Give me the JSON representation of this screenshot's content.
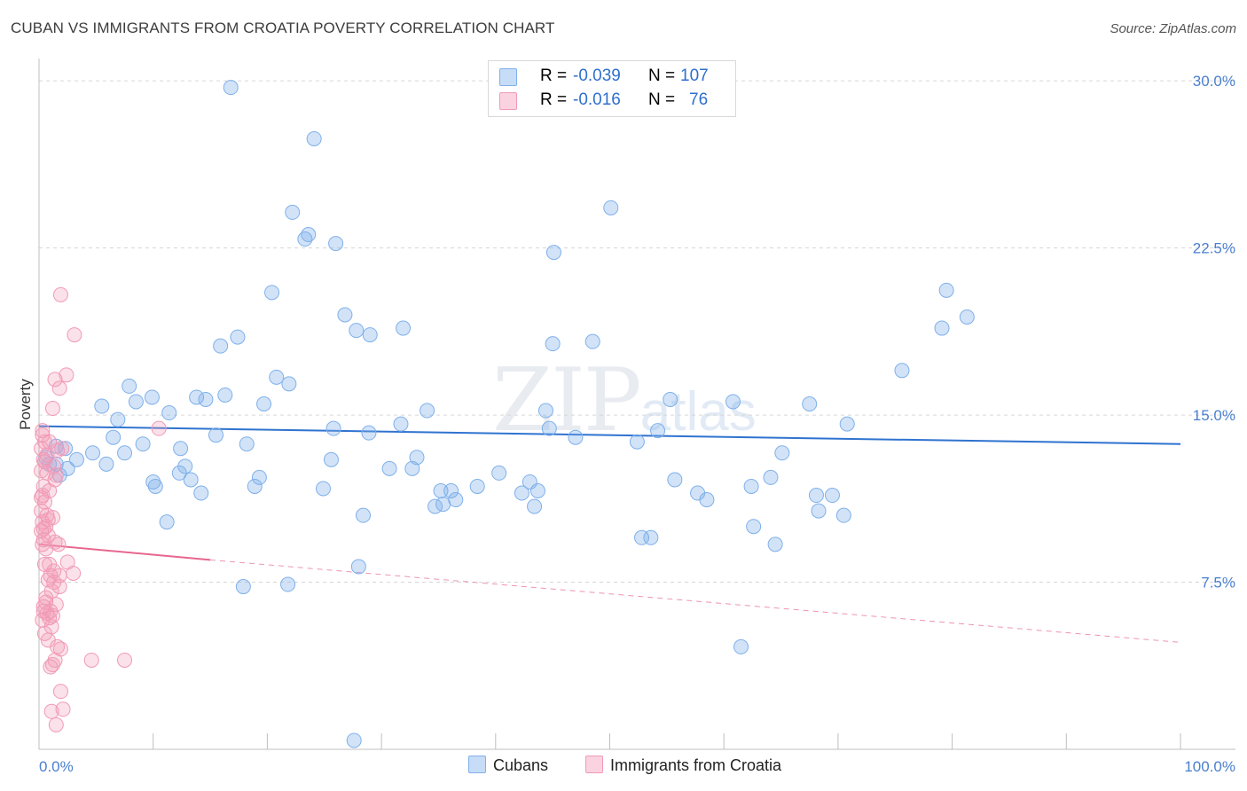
{
  "title": "CUBAN VS IMMIGRANTS FROM CROATIA POVERTY CORRELATION CHART",
  "source": "Source: ZipAtlas.com",
  "watermark": {
    "zip": "ZIP",
    "atlas": "atlas"
  },
  "legend": {
    "rows": [
      {
        "r_label": "R =",
        "r_value": "-0.039",
        "n_label": "N =",
        "n_value": "107",
        "color": "#7fb0ea"
      },
      {
        "r_label": "R =",
        "r_value": "-0.016",
        "n_label": "N =",
        "n_value": "76",
        "color": "#f19ab6"
      }
    ]
  },
  "bottom_legend": [
    {
      "label": "Cubans",
      "color": "#7fb0ea"
    },
    {
      "label": "Immigrants from Croatia",
      "color": "#f19ab6"
    }
  ],
  "chart_data": {
    "type": "scatter",
    "title": "CUBAN VS IMMIGRANTS FROM CROATIA POVERTY CORRELATION CHART",
    "xlabel": "",
    "ylabel": "Poverty",
    "xlim": [
      0,
      100
    ],
    "ylim": [
      0,
      31
    ],
    "x_tick_labels": [
      "0.0%",
      "100.0%"
    ],
    "y_ticks": [
      7.5,
      15.0,
      22.5,
      30.0
    ],
    "y_tick_labels": [
      "7.5%",
      "15.0%",
      "22.5%",
      "30.0%"
    ],
    "grid": "horizontal dashed",
    "series": [
      {
        "name": "Cubans",
        "color": "#7fb0ea",
        "trend": {
          "x": [
            0,
            100
          ],
          "y": [
            14.5,
            13.7
          ],
          "style": "solid",
          "color": "#2f73d0"
        },
        "points": [
          [
            16.8,
            29.7
          ],
          [
            24.1,
            27.4
          ],
          [
            22.2,
            24.1
          ],
          [
            23.6,
            23.1
          ],
          [
            23.3,
            22.9
          ],
          [
            26.0,
            22.7
          ],
          [
            50.1,
            24.3
          ],
          [
            45.1,
            22.3
          ],
          [
            20.4,
            20.5
          ],
          [
            26.8,
            19.5
          ],
          [
            27.8,
            18.8
          ],
          [
            29.0,
            18.6
          ],
          [
            31.9,
            18.9
          ],
          [
            15.9,
            18.1
          ],
          [
            17.4,
            18.5
          ],
          [
            45.0,
            18.2
          ],
          [
            48.5,
            18.3
          ],
          [
            79.5,
            20.6
          ],
          [
            81.3,
            19.4
          ],
          [
            79.1,
            18.9
          ],
          [
            75.6,
            17.0
          ],
          [
            20.8,
            16.7
          ],
          [
            21.9,
            16.4
          ],
          [
            19.7,
            15.5
          ],
          [
            7.9,
            16.3
          ],
          [
            8.5,
            15.6
          ],
          [
            9.9,
            15.8
          ],
          [
            5.5,
            15.4
          ],
          [
            6.9,
            14.8
          ],
          [
            11.4,
            15.1
          ],
          [
            13.8,
            15.8
          ],
          [
            14.6,
            15.7
          ],
          [
            16.3,
            15.9
          ],
          [
            34.0,
            15.2
          ],
          [
            55.3,
            15.7
          ],
          [
            60.8,
            15.6
          ],
          [
            67.5,
            15.5
          ],
          [
            44.4,
            15.2
          ],
          [
            31.7,
            14.6
          ],
          [
            25.8,
            14.4
          ],
          [
            28.9,
            14.2
          ],
          [
            44.7,
            14.4
          ],
          [
            47.0,
            14.0
          ],
          [
            54.2,
            14.3
          ],
          [
            52.4,
            13.8
          ],
          [
            70.8,
            14.6
          ],
          [
            6.5,
            14.0
          ],
          [
            9.1,
            13.7
          ],
          [
            12.4,
            13.5
          ],
          [
            15.5,
            14.1
          ],
          [
            18.2,
            13.7
          ],
          [
            2.3,
            13.5
          ],
          [
            3.3,
            13.0
          ],
          [
            4.7,
            13.3
          ],
          [
            7.5,
            13.3
          ],
          [
            5.9,
            12.8
          ],
          [
            2.5,
            12.6
          ],
          [
            1.5,
            12.8
          ],
          [
            0.9,
            12.8
          ],
          [
            1.8,
            12.3
          ],
          [
            12.8,
            12.7
          ],
          [
            12.3,
            12.4
          ],
          [
            19.3,
            12.2
          ],
          [
            25.6,
            13.0
          ],
          [
            33.1,
            13.1
          ],
          [
            30.7,
            12.6
          ],
          [
            32.7,
            12.6
          ],
          [
            40.3,
            12.4
          ],
          [
            65.1,
            13.3
          ],
          [
            64.1,
            12.2
          ],
          [
            55.7,
            12.1
          ],
          [
            62.4,
            11.8
          ],
          [
            10.0,
            12.0
          ],
          [
            10.2,
            11.8
          ],
          [
            13.3,
            12.1
          ],
          [
            14.2,
            11.5
          ],
          [
            18.9,
            11.8
          ],
          [
            24.9,
            11.7
          ],
          [
            35.2,
            11.6
          ],
          [
            36.1,
            11.6
          ],
          [
            38.4,
            11.8
          ],
          [
            42.3,
            11.5
          ],
          [
            43.0,
            12.0
          ],
          [
            43.7,
            11.6
          ],
          [
            35.4,
            11.0
          ],
          [
            36.5,
            11.2
          ],
          [
            34.7,
            10.9
          ],
          [
            43.4,
            10.9
          ],
          [
            57.7,
            11.5
          ],
          [
            58.5,
            11.2
          ],
          [
            68.1,
            11.4
          ],
          [
            69.5,
            11.4
          ],
          [
            68.3,
            10.7
          ],
          [
            70.5,
            10.5
          ],
          [
            11.2,
            10.2
          ],
          [
            28.4,
            10.5
          ],
          [
            52.8,
            9.5
          ],
          [
            53.6,
            9.5
          ],
          [
            62.6,
            10.0
          ],
          [
            64.5,
            9.2
          ],
          [
            17.9,
            7.3
          ],
          [
            21.8,
            7.4
          ],
          [
            28.0,
            8.2
          ],
          [
            61.5,
            4.6
          ],
          [
            27.6,
            0.4
          ],
          [
            0.6,
            13.1
          ],
          [
            1.5,
            13.6
          ]
        ]
      },
      {
        "name": "Immigrants from Croatia",
        "color": "#f19ab6",
        "trend": {
          "x": [
            0,
            15
          ],
          "y": [
            9.2,
            8.5
          ],
          "dashed_to": [
            100,
            4.8
          ],
          "style": "solid",
          "color": "#e8668f"
        },
        "points": [
          [
            1.9,
            20.4
          ],
          [
            3.1,
            18.6
          ],
          [
            2.4,
            16.8
          ],
          [
            1.4,
            16.6
          ],
          [
            1.8,
            16.2
          ],
          [
            1.2,
            15.3
          ],
          [
            10.5,
            14.4
          ],
          [
            0.3,
            14.3
          ],
          [
            0.5,
            13.8
          ],
          [
            0.9,
            13.8
          ],
          [
            0.2,
            13.5
          ],
          [
            1.6,
            13.4
          ],
          [
            0.4,
            13.0
          ],
          [
            1.3,
            12.7
          ],
          [
            0.2,
            12.5
          ],
          [
            0.7,
            12.4
          ],
          [
            1.5,
            12.3
          ],
          [
            0.4,
            11.8
          ],
          [
            0.9,
            11.6
          ],
          [
            0.3,
            11.4
          ],
          [
            0.5,
            11.1
          ],
          [
            0.2,
            10.7
          ],
          [
            0.7,
            10.5
          ],
          [
            1.2,
            10.4
          ],
          [
            0.3,
            10.2
          ],
          [
            0.6,
            10.0
          ],
          [
            0.2,
            9.8
          ],
          [
            0.8,
            9.6
          ],
          [
            0.4,
            9.4
          ],
          [
            1.4,
            9.3
          ],
          [
            0.3,
            9.2
          ],
          [
            0.6,
            9.0
          ],
          [
            0.9,
            8.3
          ],
          [
            0.5,
            8.3
          ],
          [
            2.5,
            8.4
          ],
          [
            3.0,
            7.9
          ],
          [
            1.8,
            7.8
          ],
          [
            0.8,
            7.6
          ],
          [
            1.3,
            7.5
          ],
          [
            1.8,
            7.3
          ],
          [
            1.1,
            7.1
          ],
          [
            0.6,
            6.8
          ],
          [
            1.5,
            6.5
          ],
          [
            0.4,
            6.4
          ],
          [
            1.0,
            6.2
          ],
          [
            0.7,
            6.1
          ],
          [
            1.2,
            6.0
          ],
          [
            0.3,
            5.8
          ],
          [
            1.1,
            5.5
          ],
          [
            0.5,
            5.2
          ],
          [
            0.8,
            4.9
          ],
          [
            1.6,
            4.6
          ],
          [
            1.9,
            4.5
          ],
          [
            1.4,
            4.0
          ],
          [
            1.2,
            3.8
          ],
          [
            1.0,
            3.7
          ],
          [
            4.6,
            4.0
          ],
          [
            7.5,
            4.0
          ],
          [
            1.9,
            2.6
          ],
          [
            1.1,
            1.7
          ],
          [
            2.1,
            1.8
          ],
          [
            1.5,
            1.1
          ],
          [
            0.4,
            9.9
          ],
          [
            0.8,
            10.3
          ],
          [
            0.6,
            6.6
          ],
          [
            1.3,
            8.0
          ],
          [
            0.9,
            5.9
          ],
          [
            0.5,
            12.9
          ],
          [
            1.7,
            9.2
          ],
          [
            0.2,
            11.3
          ],
          [
            1.0,
            7.8
          ],
          [
            0.4,
            6.2
          ],
          [
            1.4,
            12.1
          ],
          [
            0.7,
            13.2
          ],
          [
            2.0,
            13.5
          ],
          [
            0.3,
            14.1
          ]
        ]
      }
    ]
  }
}
